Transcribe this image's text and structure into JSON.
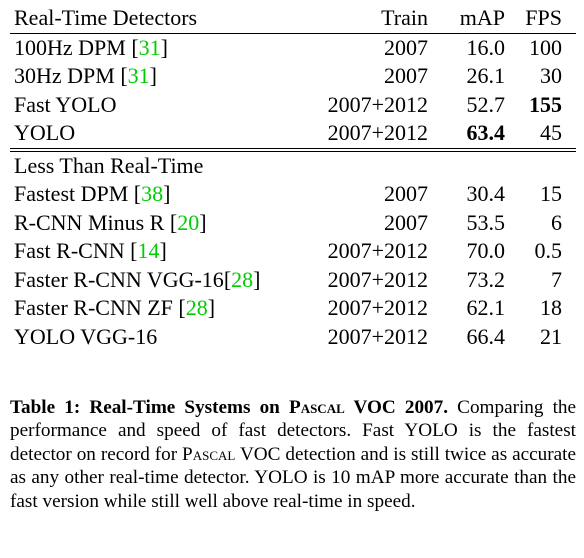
{
  "table": {
    "header": {
      "name": "Real-Time Detectors",
      "train": "Train",
      "map": "mAP",
      "fps": "FPS"
    },
    "realtime_rows": [
      {
        "name": "100Hz DPM ",
        "ref": "31",
        "train": "2007",
        "map": "16.0",
        "fps": "100",
        "map_bold": false,
        "fps_bold": false
      },
      {
        "name": "30Hz DPM ",
        "ref": "31",
        "train": "2007",
        "map": "26.1",
        "fps": "30",
        "map_bold": false,
        "fps_bold": false
      },
      {
        "name": "Fast YOLO",
        "ref": "",
        "train": "2007+2012",
        "map": "52.7",
        "fps": "155",
        "map_bold": false,
        "fps_bold": true
      },
      {
        "name": "YOLO",
        "ref": "",
        "train": "2007+2012",
        "map": "63.4",
        "fps": "45",
        "map_bold": true,
        "fps_bold": false
      }
    ],
    "section2_title": "Less Than Real-Time",
    "slow_rows": [
      {
        "name": "Fastest DPM ",
        "ref": "38",
        "train": "2007",
        "map": "30.4",
        "fps": "15"
      },
      {
        "name": "R-CNN Minus R ",
        "ref": "20",
        "train": "2007",
        "map": "53.5",
        "fps": "6"
      },
      {
        "name": "Fast R-CNN ",
        "ref": "14",
        "train": "2007+2012",
        "map": "70.0",
        "fps": "0.5"
      },
      {
        "name": "Faster R-CNN VGG-16",
        "ref": "28",
        "train": "2007+2012",
        "map": "73.2",
        "fps": "7"
      },
      {
        "name": "Faster R-CNN ZF ",
        "ref": "28",
        "train": "2007+2012",
        "map": "62.1",
        "fps": "18"
      },
      {
        "name": "YOLO VGG-16",
        "ref": "",
        "train": "2007+2012",
        "map": "66.4",
        "fps": "21"
      }
    ]
  },
  "caption": {
    "label": "Table 1:",
    "title_pre": "Real-Time Systems on P",
    "title_sc": "ascal",
    "title_post": " VOC 2007.",
    "text_1": "Comparing the performance and speed of fast detectors. Fast YOLO is the fastest detector on record for P",
    "text_sc": "ascal",
    "text_2": " VOC detection and is still twice as accurate as any other real-time detector. YOLO is 10 mAP more accurate than the fast version while still well above real-time in speed."
  }
}
